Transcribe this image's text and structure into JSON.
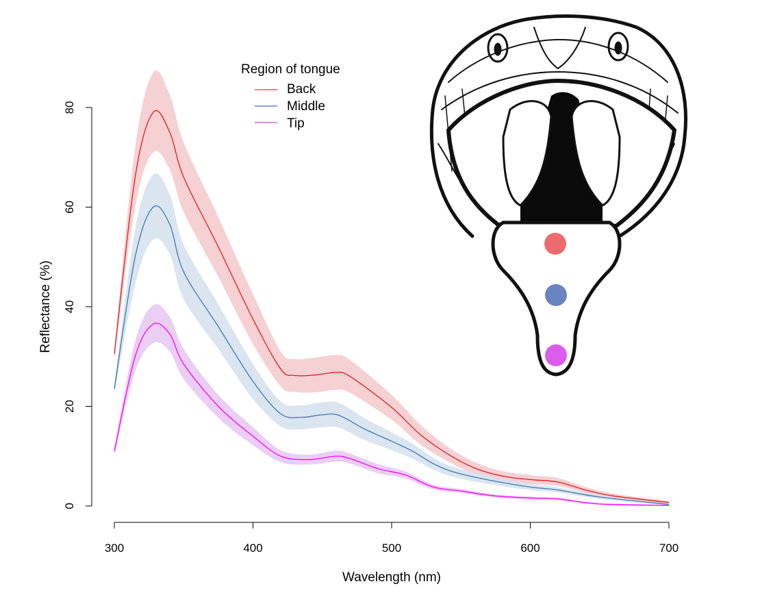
{
  "chart_data": {
    "type": "line",
    "xlabel": "Wavelength (nm)",
    "ylabel": "Reflectance (%)",
    "xlim": [
      300,
      700
    ],
    "ylim": [
      0,
      80
    ],
    "xticks": [
      300,
      400,
      500,
      600,
      700
    ],
    "yticks": [
      0,
      20,
      40,
      60,
      80
    ],
    "grid": false,
    "legend": {
      "title": "Region of tongue",
      "position": "top-center"
    },
    "series": [
      {
        "name": "Back",
        "line_color": "#e31a1c",
        "legend_color": "#e8000b",
        "band_color": "#f5c9cb",
        "x": [
          300,
          315,
          328,
          340,
          350,
          375,
          400,
          420,
          430,
          445,
          460,
          470,
          500,
          520,
          540,
          560,
          580,
          600,
          620,
          640,
          660,
          700
        ],
        "y": [
          30.5,
          66,
          79,
          75,
          66,
          52,
          37.5,
          27.5,
          26.2,
          26.3,
          26.8,
          26,
          19.8,
          14.5,
          10.5,
          7.6,
          6,
          5.3,
          4.8,
          3.2,
          2,
          0.7
        ],
        "ci_halfwidth": [
          1,
          6,
          8,
          7.5,
          7,
          6,
          5,
          3.5,
          3.3,
          3.5,
          3.5,
          3.3,
          2.5,
          2,
          1.5,
          1.2,
          1,
          0.9,
          0.8,
          0.6,
          0.5,
          0.3
        ]
      },
      {
        "name": "Middle",
        "line_color": "#3a78b5",
        "legend_color": "#1f3fd8",
        "band_color": "#d4e1ec",
        "x": [
          300,
          315,
          328,
          340,
          350,
          375,
          400,
          420,
          435,
          450,
          462,
          480,
          500,
          515,
          530,
          545,
          570,
          600,
          620,
          650,
          700
        ],
        "y": [
          23.5,
          50,
          60,
          56.5,
          47,
          36,
          25,
          18.5,
          17.8,
          18.3,
          18.2,
          15.5,
          13,
          11,
          8.5,
          6.8,
          5.2,
          3.8,
          3.2,
          1.8,
          0.3
        ],
        "ci_halfwidth": [
          1,
          5.5,
          6.5,
          6,
          5.5,
          4.5,
          3.5,
          2.5,
          2.4,
          2.5,
          2.5,
          2.2,
          1.8,
          1.5,
          1.2,
          1,
          0.8,
          0.6,
          0.5,
          0.4,
          0.2
        ]
      },
      {
        "name": "Tip",
        "line_color": "#ff00ff",
        "legend_color": "#c020c0",
        "band_color": "#e6c6f2",
        "x": [
          300,
          315,
          328,
          340,
          350,
          375,
          400,
          420,
          440,
          460,
          470,
          490,
          510,
          530,
          550,
          575,
          600,
          620,
          650,
          700
        ],
        "y": [
          11,
          30,
          36.5,
          34.5,
          28.5,
          20,
          14,
          10,
          9.3,
          10,
          9.5,
          7.5,
          6.2,
          3.8,
          3,
          2,
          1.6,
          1.4,
          0.4,
          0.1
        ],
        "ci_halfwidth": [
          0.8,
          3,
          3.8,
          3.5,
          3,
          2.3,
          1.8,
          1.2,
          1,
          1.1,
          1,
          0.9,
          0.7,
          0.5,
          0.4,
          0.3,
          0.3,
          0.2,
          0.2,
          0.1
        ]
      }
    ]
  },
  "illustration": {
    "subject": "snake head with open mouth",
    "dot_colors": [
      "#ed6b6e",
      "#6a84c2",
      "#dc5ced"
    ]
  }
}
